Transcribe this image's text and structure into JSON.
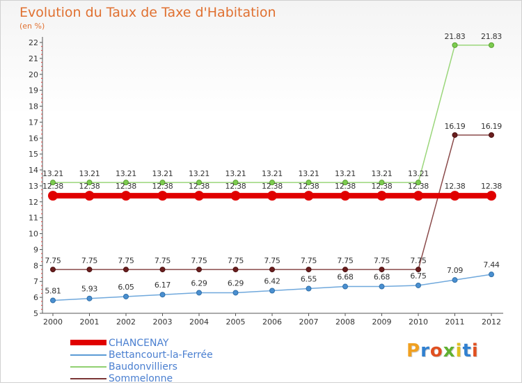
{
  "title": "Evolution du Taux de Taxe d'Habitation",
  "unit_label": "(en %)",
  "logo_text": "Proxiti",
  "logo_colors": [
    "#f0a020",
    "#3080d0",
    "#e05020",
    "#60b030",
    "#e0c020",
    "#3080d0",
    "#e05020"
  ],
  "chart_data": {
    "type": "line",
    "title": "Evolution du Taux de Taxe d'Habitation",
    "ylabel": "(en %)",
    "xlabel": "",
    "x": [
      "2000",
      "2001",
      "2002",
      "2003",
      "2004",
      "2005",
      "2006",
      "2007",
      "2008",
      "2009",
      "2010",
      "2011",
      "2012"
    ],
    "ylim": [
      5,
      22
    ],
    "yticks": [
      5,
      6,
      7,
      8,
      9,
      10,
      11,
      12,
      13,
      14,
      15,
      16,
      17,
      18,
      19,
      20,
      21,
      22
    ],
    "grid": false,
    "legend_position": "bottom-left",
    "series": [
      {
        "name": "CHANCENAY",
        "color": "#e00000",
        "values": [
          12.38,
          12.38,
          12.38,
          12.38,
          12.38,
          12.38,
          12.38,
          12.38,
          12.38,
          12.38,
          12.38,
          12.38,
          12.38
        ],
        "labels": [
          "12.38",
          "12.38",
          "12.38",
          "12.38",
          "12.38",
          "12.38",
          "12.38",
          "12.38",
          "12.38",
          "12.38",
          "12.38",
          "12.38",
          "12.38"
        ]
      },
      {
        "name": "Bettancourt-la-Ferrée",
        "color": "#5b9bd5",
        "values": [
          5.81,
          5.93,
          6.05,
          6.17,
          6.29,
          6.29,
          6.42,
          6.55,
          6.68,
          6.68,
          6.75,
          7.09,
          7.44
        ],
        "labels": [
          "5.81",
          "5.93",
          "6.05",
          "6.17",
          "6.29",
          "6.29",
          "6.42",
          "6.55",
          "6.68",
          "6.68",
          "6.75",
          "7.09",
          "7.44"
        ]
      },
      {
        "name": "Baudonvilliers",
        "color": "#90d070",
        "values": [
          13.21,
          13.21,
          13.21,
          13.21,
          13.21,
          13.21,
          13.21,
          13.21,
          13.21,
          13.21,
          13.21,
          21.83,
          21.83
        ],
        "labels": [
          "13.21",
          "13.21",
          "13.21",
          "13.21",
          "13.21",
          "13.21",
          "13.21",
          "13.21",
          "13.21",
          "13.21",
          "13.21",
          "21.83",
          "21.83"
        ]
      },
      {
        "name": "Sommelonne",
        "color": "#7a3535",
        "values": [
          7.75,
          7.75,
          7.75,
          7.75,
          7.75,
          7.75,
          7.75,
          7.75,
          7.75,
          7.75,
          7.75,
          16.19,
          16.19
        ],
        "labels": [
          "7.75",
          "7.75",
          "7.75",
          "7.75",
          "7.75",
          "7.75",
          "7.75",
          "7.75",
          "7.75",
          "7.75",
          "7.75",
          "16.19",
          "16.19"
        ]
      }
    ]
  }
}
